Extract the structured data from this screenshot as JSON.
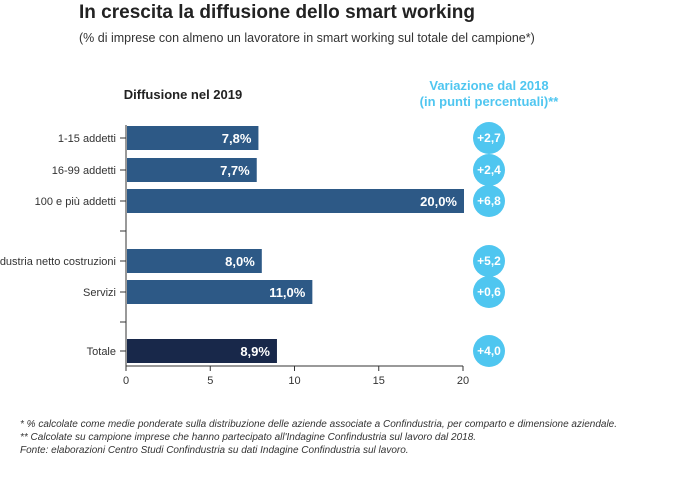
{
  "title": "In crescita la diffusione dello smart working",
  "subtitle": "(% di imprese con almeno un lavoratore in smart working sul totale del campione*)",
  "notes": [
    "* % calcolate come medie ponderate sulla distribuzione delle aziende associate a Confindustria, per comparto e dimensione aziendale.",
    "** Calcolate su campione imprese che hanno partecipato all'Indagine Confindustria sul lavoro dal 2018.",
    "Fonte: elaborazioni Centro Studi Confindustria su dati Indagine Confindustria sul lavoro."
  ],
  "chart_data": {
    "type": "bar",
    "orientation": "horizontal",
    "panel_title": "Diffusione nel 2019",
    "change_title": [
      "Variazione dal 2018",
      "(in punti percentuali)**"
    ],
    "categories": [
      "1-15 addetti",
      "16-99 addetti",
      "100 e più addetti",
      "",
      "Industria netto costruzioni",
      "Servizi",
      "",
      "Totale"
    ],
    "values": [
      7.8,
      7.7,
      20.0,
      null,
      8.0,
      11.0,
      null,
      8.9
    ],
    "labels": [
      "7,8%",
      "7,7%",
      "20,0%",
      "",
      "8,0%",
      "11,0%",
      "",
      "8,9%"
    ],
    "changes": [
      "+2,7",
      "+2,4",
      "+6,8",
      "",
      "+5,2",
      "+0,6",
      "",
      "+4,0"
    ],
    "xlim": [
      0,
      20
    ],
    "xticks": [
      "0",
      "5",
      "10",
      "15",
      "20"
    ],
    "colors": {
      "bar": "#2d5986",
      "total": "#18284a",
      "circle": "#4fc6f0",
      "change_title": "#4fc6f0"
    }
  }
}
